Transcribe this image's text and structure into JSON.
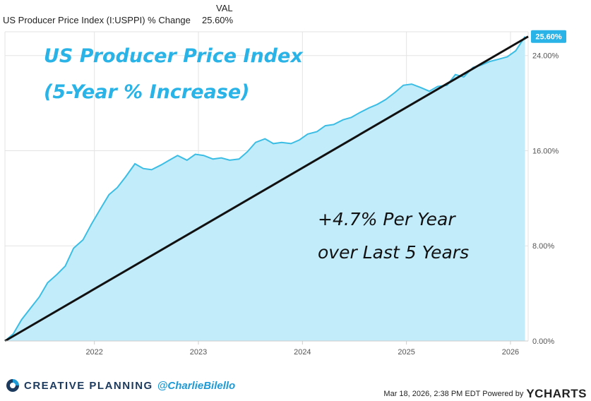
{
  "legend": {
    "header": "VAL",
    "series_name": "US Producer Price Index (I:USPPI) % Change",
    "series_value": "25.60%"
  },
  "colors": {
    "line": "#3bbde4",
    "fill": "#c3ecfb",
    "trend": "#111111",
    "title": "#2ab3e6",
    "badge": "#2ab3e6",
    "grid": "#e3e3e3"
  },
  "annotations": {
    "title_line1": "US Producer Price Index",
    "title_line2": "(5-Year % Increase)",
    "trend_line1": "+4.7% Per Year",
    "trend_line2": "over Last 5 Years",
    "last_value_badge": "25.60%"
  },
  "footer": {
    "brand": "CREATIVE PLANNING",
    "handle": "@CharlieBilello",
    "timestamp": "Mar 18, 2026, 2:38 PM EDT Powered by",
    "ycharts": "YCHARTS"
  },
  "chart_data": {
    "type": "area",
    "title": "US Producer Price Index (5-Year % Increase)",
    "xlabel": "",
    "ylabel": "",
    "ylim": [
      0,
      26
    ],
    "xlim": [
      2021.14,
      2026.17
    ],
    "y_ticks": [
      0,
      8,
      16,
      24
    ],
    "y_tick_labels": [
      "0.00%",
      "8.00%",
      "16.00%",
      "24.00%"
    ],
    "x_ticks": [
      2022,
      2023,
      2024,
      2025,
      2026
    ],
    "x_tick_labels": [
      "2022",
      "2023",
      "2024",
      "2025",
      "2026"
    ],
    "grid": true,
    "series": [
      {
        "name": "US Producer Price Index (I:USPPI) % Change",
        "x": [
          2021.14,
          2021.22,
          2021.3,
          2021.39,
          2021.47,
          2021.55,
          2021.64,
          2021.72,
          2021.8,
          2021.89,
          2021.97,
          2022.05,
          2022.14,
          2022.22,
          2022.3,
          2022.39,
          2022.47,
          2022.55,
          2022.64,
          2022.72,
          2022.8,
          2022.89,
          2022.97,
          2023.05,
          2023.14,
          2023.22,
          2023.3,
          2023.39,
          2023.47,
          2023.55,
          2023.64,
          2023.72,
          2023.8,
          2023.89,
          2023.97,
          2024.05,
          2024.14,
          2024.22,
          2024.3,
          2024.39,
          2024.47,
          2024.55,
          2024.64,
          2024.72,
          2024.8,
          2024.89,
          2024.97,
          2025.05,
          2025.14,
          2025.22,
          2025.3,
          2025.39,
          2025.47,
          2025.55,
          2025.64,
          2025.72,
          2025.8,
          2025.89,
          2025.97,
          2026.05,
          2026.14
        ],
        "values": [
          0.0,
          0.6,
          1.8,
          2.8,
          3.7,
          4.9,
          5.6,
          6.3,
          7.8,
          8.5,
          9.8,
          11.0,
          12.3,
          12.9,
          13.8,
          14.9,
          14.5,
          14.4,
          14.8,
          15.2,
          15.6,
          15.2,
          15.7,
          15.6,
          15.3,
          15.4,
          15.2,
          15.3,
          15.9,
          16.7,
          17.0,
          16.6,
          16.7,
          16.6,
          16.9,
          17.4,
          17.6,
          18.1,
          18.2,
          18.6,
          18.8,
          19.2,
          19.6,
          19.9,
          20.3,
          20.9,
          21.5,
          21.6,
          21.3,
          21.0,
          21.4,
          21.5,
          22.4,
          22.2,
          23.0,
          23.2,
          23.5,
          23.7,
          23.9,
          24.4,
          25.6
        ]
      },
      {
        "name": "",
        "x": [
          2021.14,
          2026.17
        ],
        "values": [
          0.0,
          25.6
        ]
      }
    ]
  }
}
